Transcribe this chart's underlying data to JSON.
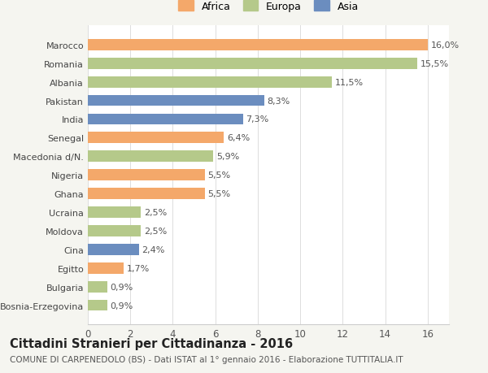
{
  "categories": [
    "Bosnia-Erzegovina",
    "Bulgaria",
    "Egitto",
    "Cina",
    "Moldova",
    "Ucraina",
    "Ghana",
    "Nigeria",
    "Macedonia d/N.",
    "Senegal",
    "India",
    "Pakistan",
    "Albania",
    "Romania",
    "Marocco"
  ],
  "values": [
    0.9,
    0.9,
    1.7,
    2.4,
    2.5,
    2.5,
    5.5,
    5.5,
    5.9,
    6.4,
    7.3,
    8.3,
    11.5,
    15.5,
    16.0
  ],
  "labels": [
    "0,9%",
    "0,9%",
    "1,7%",
    "2,4%",
    "2,5%",
    "2,5%",
    "5,5%",
    "5,5%",
    "5,9%",
    "6,4%",
    "7,3%",
    "8,3%",
    "11,5%",
    "15,5%",
    "16,0%"
  ],
  "colors": [
    "#b5c98a",
    "#b5c98a",
    "#f4a86a",
    "#6b8dbf",
    "#b5c98a",
    "#b5c98a",
    "#f4a86a",
    "#f4a86a",
    "#b5c98a",
    "#f4a86a",
    "#6b8dbf",
    "#6b8dbf",
    "#b5c98a",
    "#b5c98a",
    "#f4a86a"
  ],
  "legend": [
    {
      "label": "Africa",
      "color": "#f4a86a"
    },
    {
      "label": "Europa",
      "color": "#b5c98a"
    },
    {
      "label": "Asia",
      "color": "#6b8dbf"
    }
  ],
  "xlim": [
    0,
    17
  ],
  "xticks": [
    0,
    2,
    4,
    6,
    8,
    10,
    12,
    14,
    16
  ],
  "title": "Cittadini Stranieri per Cittadinanza - 2016",
  "subtitle": "COMUNE DI CARPENEDOLO (BS) - Dati ISTAT al 1° gennaio 2016 - Elaborazione TUTTITALIA.IT",
  "bg_color": "#f5f5f0",
  "plot_bg_color": "#ffffff",
  "bar_height": 0.6,
  "label_fontsize": 8,
  "ytick_fontsize": 8,
  "xtick_fontsize": 8.5,
  "title_fontsize": 10.5,
  "subtitle_fontsize": 7.5
}
